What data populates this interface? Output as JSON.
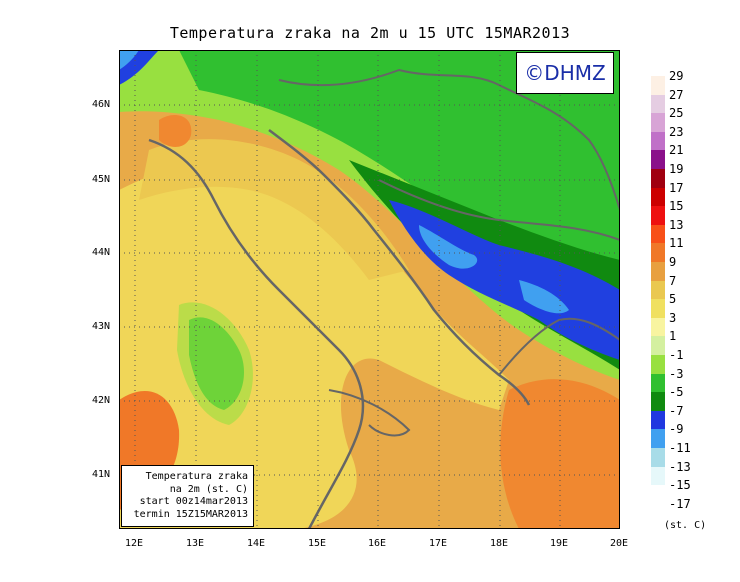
{
  "title": "Temperatura zraka na 2m u 15 UTC 15MAR2013",
  "logo": "©DHMZ",
  "info": {
    "line1": "Temperatura zraka",
    "line2": "na 2m (st. C)",
    "line3": "start 00z14mar2013",
    "line4": "termin 15Z15MAR2013"
  },
  "lat_labels": [
    "46N",
    "45N",
    "44N",
    "43N",
    "42N",
    "41N"
  ],
  "lon_labels": [
    "12E",
    "13E",
    "14E",
    "15E",
    "16E",
    "17E",
    "18E",
    "19E",
    "20E"
  ],
  "colorbar": {
    "labels": [
      "29",
      "27",
      "25",
      "23",
      "21",
      "19",
      "17",
      "15",
      "13",
      "11",
      "9",
      "7",
      "5",
      "3",
      "1",
      "-1",
      "-3",
      "-5",
      "-7",
      "-9",
      "-11",
      "-13",
      "-15",
      "-17"
    ],
    "colors": [
      "#fdf0e4",
      "#e5cde2",
      "#d8a4d6",
      "#c070c8",
      "#8a108a",
      "#a00010",
      "#cc0000",
      "#ee1010",
      "#f85018",
      "#f07828",
      "#e8a040",
      "#eac850",
      "#f0e060",
      "#f8f4a0",
      "#d4f0a0",
      "#98e040",
      "#30c030",
      "#108a10",
      "#2038e0",
      "#40a0f0",
      "#a8dce8",
      "#e6f8fa"
    ],
    "unit": "(st. C)"
  },
  "legend_colors": {
    "sea_warm": "#e8aa48",
    "coast": "#f0d658",
    "land_green": "#2cb82c",
    "mountain": "#2040e0",
    "coastline": "#666666"
  }
}
